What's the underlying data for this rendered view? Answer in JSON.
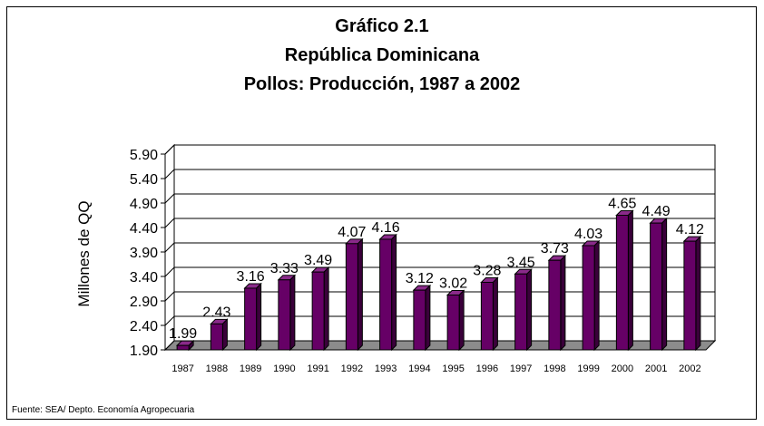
{
  "title_lines": [
    "Gráfico 2.1",
    "República Dominicana",
    "Pollos: Producción, 1987 a 2002"
  ],
  "source": "Fuente: SEA/ Depto. Economía Agropecuaria",
  "colors": {
    "bar_front": "#660066",
    "bar_side": "#3a003a",
    "bar_top": "#8a2a8a",
    "floor": "#8c8c8c"
  },
  "chart_data": {
    "type": "bar",
    "title": "Gráfico 2.1 / República Dominicana / Pollos: Producción, 1987 a 2002",
    "xlabel": "",
    "ylabel": "Millones de QQ",
    "categories": [
      "1987",
      "1988",
      "1989",
      "1990",
      "1991",
      "1992",
      "1993",
      "1994",
      "1995",
      "1996",
      "1997",
      "1998",
      "1999",
      "2000",
      "2001",
      "2002"
    ],
    "values": [
      1.99,
      2.43,
      3.16,
      3.33,
      3.49,
      4.07,
      4.16,
      3.12,
      3.02,
      3.28,
      3.45,
      3.73,
      4.03,
      4.65,
      4.49,
      4.12
    ],
    "value_labels": [
      "1.99",
      "2.43",
      "3.16",
      "3.33",
      "3.49",
      "4.07",
      "4.16",
      "3.12",
      "3.02",
      "3.28",
      "3.45",
      "3.73",
      "4.03",
      "4.65",
      "4.49",
      "4.12"
    ],
    "ylim": [
      1.9,
      5.9
    ],
    "yticks": [
      "1.90",
      "2.40",
      "2.90",
      "3.40",
      "3.90",
      "4.40",
      "4.90",
      "5.40",
      "5.90"
    ],
    "grid": true,
    "legend": "none"
  }
}
